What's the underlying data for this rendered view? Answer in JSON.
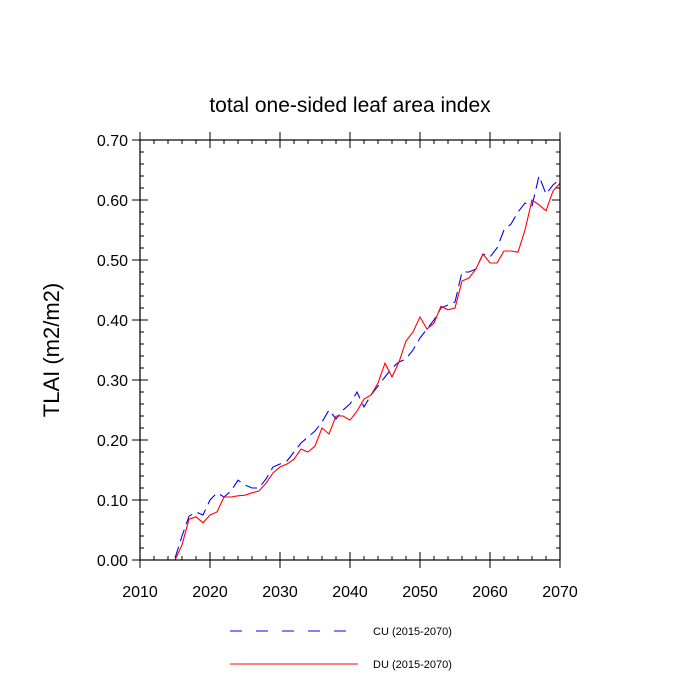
{
  "chart_data": {
    "type": "line",
    "title": "total one-sided leaf area index",
    "xlabel": "",
    "ylabel": "TLAI  (m2/m2)",
    "xlim": [
      2010,
      2070
    ],
    "ylim": [
      0.0,
      0.7
    ],
    "xticks": [
      2010,
      2020,
      2030,
      2040,
      2050,
      2060,
      2070
    ],
    "xtick_labels": [
      "2010",
      "2020",
      "2030",
      "2040",
      "2050",
      "2060",
      "2070"
    ],
    "yticks": [
      0.0,
      0.1,
      0.2,
      0.3,
      0.4,
      0.5,
      0.6,
      0.7
    ],
    "ytick_labels": [
      "0.00",
      "0.10",
      "0.20",
      "0.30",
      "0.40",
      "0.50",
      "0.60",
      "0.70"
    ],
    "grid": false,
    "legend_position": "bottom",
    "x": [
      2015,
      2016,
      2017,
      2018,
      2019,
      2020,
      2021,
      2022,
      2023,
      2024,
      2025,
      2026,
      2027,
      2028,
      2029,
      2030,
      2031,
      2032,
      2033,
      2034,
      2035,
      2036,
      2037,
      2038,
      2039,
      2040,
      2041,
      2042,
      2043,
      2044,
      2045,
      2046,
      2047,
      2048,
      2049,
      2050,
      2051,
      2052,
      2053,
      2054,
      2055,
      2056,
      2057,
      2058,
      2059,
      2060,
      2061,
      2062,
      2063,
      2064,
      2065,
      2066,
      2067,
      2068,
      2069,
      2070
    ],
    "series": [
      {
        "name": "CU (2015-2070)",
        "color": "#0000ff",
        "dash": "dashed",
        "values": [
          0.003,
          0.04,
          0.073,
          0.08,
          0.075,
          0.1,
          0.112,
          0.105,
          0.115,
          0.133,
          0.125,
          0.12,
          0.12,
          0.135,
          0.155,
          0.16,
          0.165,
          0.18,
          0.195,
          0.205,
          0.215,
          0.23,
          0.25,
          0.235,
          0.25,
          0.26,
          0.28,
          0.255,
          0.275,
          0.29,
          0.305,
          0.32,
          0.33,
          0.335,
          0.35,
          0.37,
          0.385,
          0.4,
          0.42,
          0.425,
          0.43,
          0.48,
          0.48,
          0.485,
          0.51,
          0.505,
          0.52,
          0.55,
          0.56,
          0.58,
          0.595,
          0.59,
          0.64,
          0.61,
          0.625,
          0.635
        ]
      },
      {
        "name": "DU (2015-2070)",
        "color": "#ff0000",
        "dash": "solid",
        "values": [
          0.0,
          0.025,
          0.068,
          0.072,
          0.062,
          0.075,
          0.08,
          0.105,
          0.105,
          0.107,
          0.108,
          0.112,
          0.115,
          0.128,
          0.145,
          0.155,
          0.16,
          0.168,
          0.185,
          0.18,
          0.19,
          0.22,
          0.21,
          0.24,
          0.24,
          0.233,
          0.248,
          0.268,
          0.275,
          0.295,
          0.328,
          0.305,
          0.33,
          0.365,
          0.38,
          0.405,
          0.385,
          0.395,
          0.423,
          0.417,
          0.42,
          0.465,
          0.47,
          0.485,
          0.51,
          0.495,
          0.495,
          0.515,
          0.515,
          0.513,
          0.55,
          0.6,
          0.592,
          0.582,
          0.615,
          0.628
        ]
      }
    ]
  }
}
